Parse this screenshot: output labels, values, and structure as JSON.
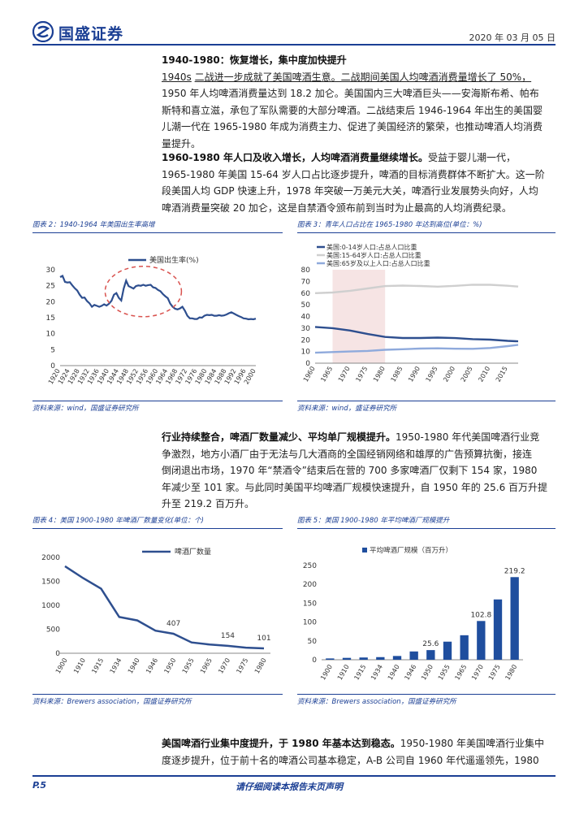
{
  "header": {
    "brand": "国盛证券",
    "date": "2020 年 03 月 05 日"
  },
  "sec1": {
    "heading": "1940-1980：恢复增长，集中度加快提升",
    "lines": [
      "二战进一步成就了美国啤酒生意。二战期间美国人均啤酒消费量增长了 50%，",
      "1950 年人均啤酒消费量达到 18.2 加仑。美国国内三大啤酒巨头——安海斯布希、帕布",
      "斯特和喜立滋，承包了军队需要的大部分啤酒。二战结束后 1946-1964 年出生的美国婴",
      "儿潮一代在 1965-1980 年成为消费主力、促进了美国经济的繁荣，也推动啤酒人均消费",
      "量提升。"
    ],
    "lead": "1940s"
  },
  "sec2": {
    "bold": "1960-1980 年人口及收入增长，人均啤酒消费量继续增长。",
    "lines": [
      "受益于婴儿潮一代，",
      "1965-1980 年美国 15-64 岁人口占比逐步提升，啤酒的目标消费群体不断扩大。这一阶",
      "段美国人均 GDP 快速上升，1978 年突破一万美元大关，啤酒行业发展势头向好，人均",
      "啤酒消费量突破 20 加仑，这是自禁酒令颁布前到当时为止最高的人均消费纪录。"
    ]
  },
  "fig2": {
    "title": "图表 2：1940-1964 年美国出生率高增",
    "source": "资料来源：wind，国盛证券研究所"
  },
  "fig3": {
    "title": "图表 3：青年人口占比在 1965-1980 年达到高位(单位：%)",
    "source": "资料来源：wind，盛证券研究所"
  },
  "sec3": {
    "bold": "行业持续整合，啤酒厂数量减少、平均单厂规模提升。",
    "lines": [
      "1950-1980 年代美国啤酒行业竞",
      "争激烈，地方小酒厂由于无法与几大酒商的全国经销网络和雄厚的广告预算抗衡，接连",
      "倒闭退出市场，1970 年“禁酒令”结束后在营的 700 多家啤酒厂仅剩下 154 家，1980",
      "年减少至 101 家。与此同时美国平均啤酒厂规模快速提升，自 1950 年的 25.6 百万升提",
      "升至 219.2 百万升。"
    ]
  },
  "fig4": {
    "title": "图表 4：美国 1900-1980 年啤酒厂数量变化(单位：个)",
    "source": "资料来源：Brewers association，国盛证券研究所"
  },
  "fig5": {
    "title": "图表 5：美国 1900-1980 年平均啤酒厂规模提升",
    "source": "资料来源：Brewers association，国盛证券研究所"
  },
  "sec4": {
    "bold": "美国啤酒行业集中度提升，于 1980 年基本达到稳态。",
    "lines": [
      "1950-1980 年美国啤酒行业集中",
      "度逐步提升，位于前十名的啤酒公司基本稳定，A-B 公司自 1960 年代遥遥领先，1980"
    ]
  },
  "footer": {
    "page": "P.5",
    "notice": "请仔细阅读本报告末页声明"
  },
  "chart_data": [
    {
      "id": "fig2",
      "type": "line",
      "legend": "美国出生率(%)",
      "categories": [
        "1920",
        "1924",
        "1928",
        "1932",
        "1936",
        "1940",
        "1944",
        "1948",
        "1952",
        "1956",
        "1960",
        "1964",
        "1968",
        "1972",
        "1976",
        "1980",
        "1984",
        "1988",
        "1992",
        "1996",
        "2000"
      ],
      "x": [
        1920,
        1921,
        1922,
        1923,
        1924,
        1925,
        1926,
        1927,
        1928,
        1929,
        1930,
        1931,
        1932,
        1933,
        1934,
        1935,
        1936,
        1937,
        1938,
        1939,
        1940,
        1941,
        1942,
        1943,
        1944,
        1945,
        1946,
        1947,
        1948,
        1949,
        1950,
        1951,
        1952,
        1953,
        1954,
        1955,
        1956,
        1957,
        1958,
        1959,
        1960,
        1961,
        1962,
        1963,
        1964,
        1965,
        1966,
        1967,
        1968,
        1969,
        1970,
        1971,
        1972,
        1973,
        1974,
        1975,
        1976,
        1977,
        1978,
        1979,
        1980,
        1981,
        1982,
        1983,
        1984,
        1985,
        1986,
        1987,
        1988,
        1989,
        1990,
        1991,
        1992,
        1993,
        1994,
        1995,
        1996,
        1997,
        1998,
        1999,
        2000
      ],
      "values": [
        27.7,
        28.1,
        26.2,
        26.0,
        26.1,
        25.1,
        24.2,
        23.5,
        22.2,
        21.2,
        21.3,
        20.2,
        19.5,
        18.4,
        19.0,
        18.7,
        18.4,
        18.7,
        19.2,
        18.8,
        19.4,
        20.3,
        22.2,
        22.7,
        21.2,
        20.4,
        24.1,
        26.6,
        24.9,
        24.5,
        24.1,
        24.9,
        25.1,
        25.0,
        25.3,
        25.0,
        25.2,
        25.3,
        24.5,
        24.3,
        23.7,
        23.3,
        22.4,
        21.7,
        21.1,
        19.4,
        18.4,
        17.8,
        17.6,
        17.9,
        18.4,
        17.2,
        15.6,
        14.8,
        14.8,
        14.6,
        14.6,
        15.1,
        15.0,
        15.6,
        15.9,
        15.8,
        15.9,
        15.6,
        15.6,
        15.8,
        15.6,
        15.7,
        16.0,
        16.4,
        16.7,
        16.3,
        15.9,
        15.5,
        15.2,
        14.8,
        14.7,
        14.5,
        14.6,
        14.5,
        14.7
      ],
      "ylim": [
        0,
        30
      ],
      "yticks": [
        0,
        5,
        10,
        15,
        20,
        25,
        30
      ],
      "highlight": "dashed red ellipse around 1946-1964"
    },
    {
      "id": "fig3",
      "type": "line",
      "x": [
        1960,
        1965,
        1970,
        1975,
        1980,
        1985,
        1990,
        1995,
        2000,
        2005,
        2010,
        2015,
        2018
      ],
      "xticks": [
        "1960",
        "1965",
        "1970",
        "1975",
        "1980",
        "1985",
        "1990",
        "1995",
        "2000",
        "2005",
        "2010",
        "2015"
      ],
      "series": [
        {
          "name": "美国:0-14岁人口:占总人口比重",
          "color": "#2e4f8f",
          "values": [
            31,
            30,
            28,
            25,
            22.5,
            21.6,
            21.6,
            21.9,
            21.5,
            20.6,
            20.2,
            19.1,
            18.7
          ]
        },
        {
          "name": "美国:15-64岁人口:占总人口比重",
          "color": "#cfcfcf",
          "values": [
            60,
            60.5,
            62,
            64,
            66,
            66.4,
            66.1,
            65.5,
            66.2,
            67.2,
            67.1,
            66.3,
            65.6
          ]
        },
        {
          "name": "美国:65岁及以上人口:占总人口比重",
          "color": "#8faadc",
          "values": [
            9,
            9.5,
            10,
            10.5,
            11.5,
            12,
            12.5,
            12.7,
            12.4,
            12.3,
            13,
            14.6,
            15.7
          ]
        }
      ],
      "ylim": [
        0,
        80
      ],
      "yticks": [
        0,
        10,
        20,
        30,
        40,
        50,
        60,
        70,
        80
      ],
      "shaded_range": [
        1965,
        1980
      ]
    },
    {
      "id": "fig4",
      "type": "line",
      "legend": "啤酒厂数量",
      "categories": [
        "1900",
        "1910",
        "1915",
        "1934",
        "1940",
        "1946",
        "1950",
        "1955",
        "1965",
        "1970",
        "1975",
        "1980"
      ],
      "values": [
        1816,
        1568,
        1345,
        756,
        684,
        471,
        407,
        225,
        182,
        154,
        117,
        101
      ],
      "data_labels": {
        "1950": "407",
        "1970": "154",
        "1980": "101"
      },
      "ylim": [
        0,
        2000
      ],
      "yticks": [
        0,
        500,
        1000,
        1500,
        2000
      ]
    },
    {
      "id": "fig5",
      "type": "bar",
      "legend": "平均啤酒厂规模（百万升）",
      "categories": [
        "1900",
        "1910",
        "1915",
        "1934",
        "1940",
        "1946",
        "1950",
        "1955",
        "1965",
        "1970",
        "1975",
        "1980"
      ],
      "values": [
        3.5,
        5,
        6,
        7,
        10,
        22,
        25.6,
        48,
        65,
        102.8,
        160,
        219.2
      ],
      "data_labels": {
        "1950": "25.6",
        "1970": "102.8",
        "1980": "219.2"
      },
      "ylim": [
        0,
        250
      ],
      "yticks": [
        0,
        50,
        100,
        150,
        200,
        250
      ]
    }
  ]
}
